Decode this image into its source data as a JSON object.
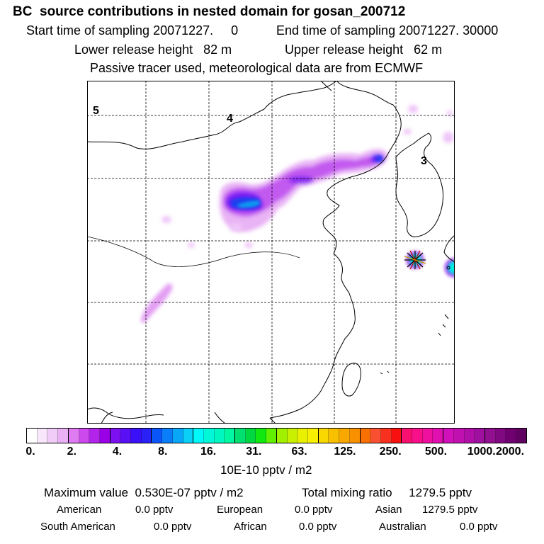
{
  "title": "BC  source contributions in nested domain for gosan_200712",
  "sampling": {
    "start": "Start time of sampling 20071227.     0",
    "end": "End time of sampling 20071227. 30000"
  },
  "release": {
    "lower": "Lower release height   82 m",
    "upper": "Upper release height   62 m"
  },
  "note": "Passive tracer used, meteorological data are from ECMWF",
  "map": {
    "grid_labels": [
      "5",
      "4",
      "3"
    ],
    "receptor_marker": "star-marker"
  },
  "colorbar": {
    "tick_labels": [
      "0.",
      "2.",
      "4.",
      "8.",
      "16.",
      "31.",
      "63.",
      "125.",
      "250.",
      "500.",
      "1000.",
      "2000."
    ],
    "colors": [
      "#ffffff",
      "#f8e6fb",
      "#f1ccf8",
      "#eab2f5",
      "#e07cf2",
      "#cc49ee",
      "#b324eb",
      "#9a00e8",
      "#7c10f0",
      "#5a10f5",
      "#3a10f8",
      "#2a20f8",
      "#0a55f8",
      "#0a7ef8",
      "#0aa6f8",
      "#0ad0f8",
      "#00f8f8",
      "#00f8d8",
      "#00f8c0",
      "#00f8a0",
      "#00e070",
      "#00d840",
      "#10e810",
      "#60f000",
      "#a0f000",
      "#c8f000",
      "#e8f000",
      "#f8f000",
      "#f8d800",
      "#f8c000",
      "#f8a800",
      "#f89000",
      "#f87000",
      "#f85030",
      "#f83020",
      "#f81010",
      "#f81070",
      "#f8108a",
      "#f010a0",
      "#e010b0",
      "#d010b8",
      "#c010b0",
      "#b010a8",
      "#a010a0",
      "#901090",
      "#800880",
      "#700070",
      "#600060"
    ],
    "unit": "10E-10 pptv / m2"
  },
  "summary": {
    "max": "Maximum value  0.530E-07 pptv / m2",
    "total": "Total mixing ratio     1279.5 pptv"
  },
  "regions": [
    {
      "name": "American",
      "value": "0.0 pptv"
    },
    {
      "name": "European",
      "value": "0.0 pptv"
    },
    {
      "name": "Asian",
      "value": "1279.5 pptv"
    },
    {
      "name": "South American",
      "value": "0.0 pptv"
    },
    {
      "name": "African",
      "value": "0.0 pptv"
    },
    {
      "name": "Australian",
      "value": "0.0 pptv"
    }
  ]
}
